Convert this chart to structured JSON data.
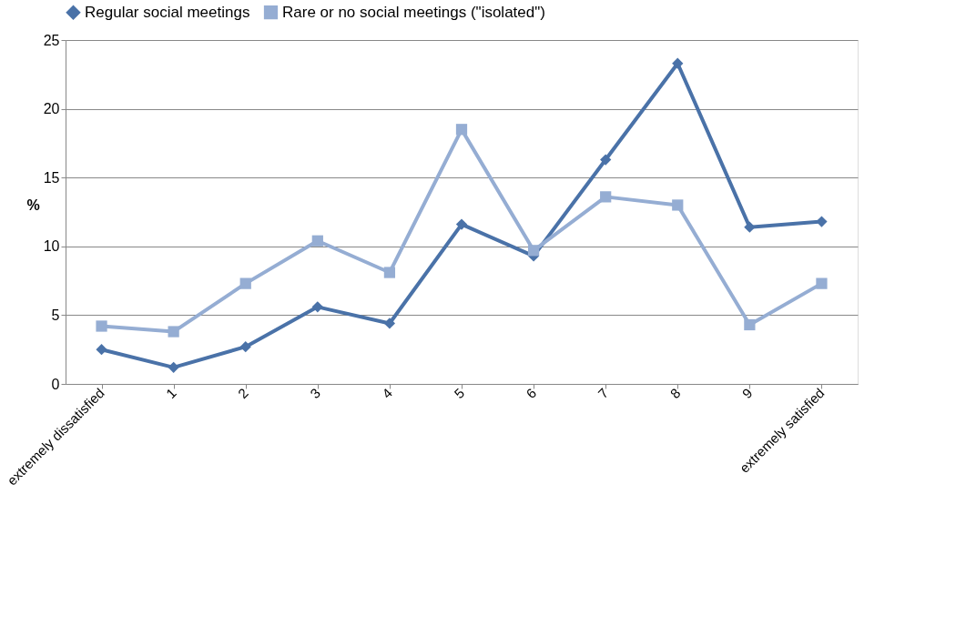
{
  "chart_data": {
    "type": "line",
    "ylabel": "%",
    "categories": [
      "extremely dissatisfied",
      "1",
      "2",
      "3",
      "4",
      "5",
      "6",
      "7",
      "8",
      "9",
      "extremely satisfied"
    ],
    "series": [
      {
        "name": "Regular social meetings",
        "color": "#4a72a8",
        "marker": "diamond",
        "values": [
          2.5,
          1.2,
          2.7,
          5.6,
          4.4,
          11.6,
          9.3,
          16.3,
          23.3,
          11.4,
          11.8
        ]
      },
      {
        "name": "Rare or no social meetings (\"isolated\")",
        "color": "#95add3",
        "marker": "square",
        "values": [
          4.2,
          3.8,
          7.3,
          10.4,
          8.1,
          18.5,
          9.7,
          13.6,
          13.0,
          4.3,
          7.3
        ]
      }
    ],
    "ylim": [
      0,
      25
    ],
    "yticks": [
      0,
      5,
      10,
      15,
      20,
      25
    ],
    "grid": "y",
    "legend": "top",
    "line_style": "solid"
  }
}
